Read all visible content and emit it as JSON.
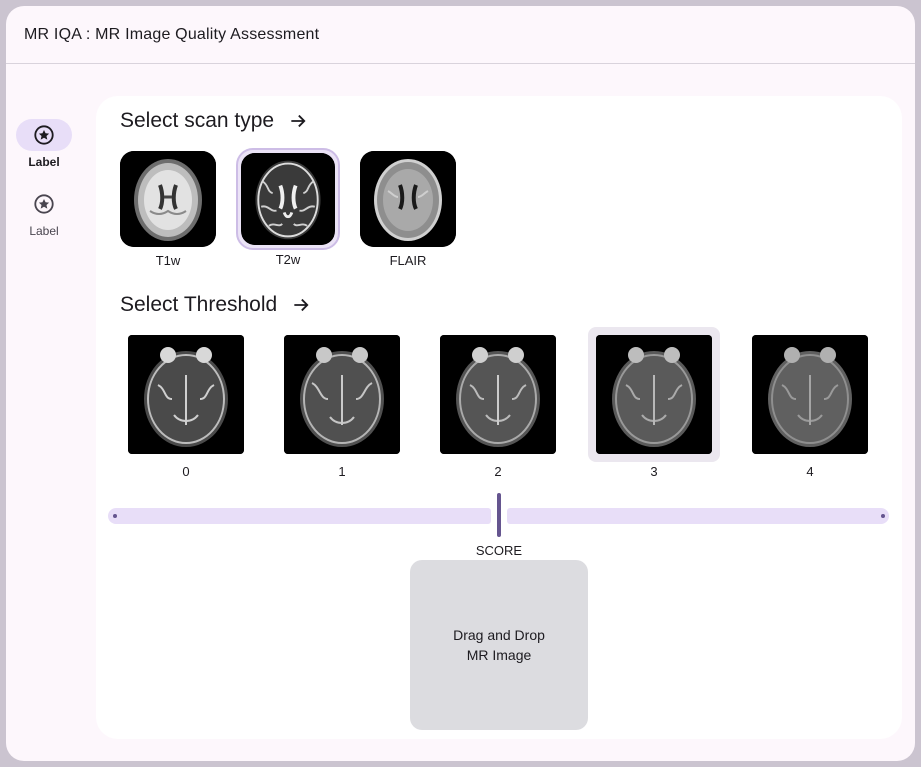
{
  "app": {
    "title": "MR IQA : MR Image Quality Assessment"
  },
  "rail": {
    "items": [
      {
        "label": "Label",
        "icon": "star-circle-icon",
        "active": true
      },
      {
        "label": "Label",
        "icon": "star-circle-icon",
        "active": false
      }
    ]
  },
  "scan_section": {
    "heading": "Select scan type",
    "items": [
      {
        "label": "T1w",
        "selected": false
      },
      {
        "label": "T2w",
        "selected": true
      },
      {
        "label": "FLAIR",
        "selected": false
      }
    ]
  },
  "threshold_section": {
    "heading": "Select Threshold",
    "items": [
      {
        "label": "0",
        "selected": false
      },
      {
        "label": "1",
        "selected": false
      },
      {
        "label": "2",
        "selected": false
      },
      {
        "label": "3",
        "selected": true
      },
      {
        "label": "4",
        "selected": false
      }
    ]
  },
  "slider": {
    "label": "SCORE",
    "value_fraction": 0.5
  },
  "dropzone": {
    "line1": "Drag and Drop",
    "line2": "MR Image"
  },
  "colors": {
    "accent": "#65558f",
    "accent_container": "#e8def8",
    "background": "#fdf7fc"
  }
}
